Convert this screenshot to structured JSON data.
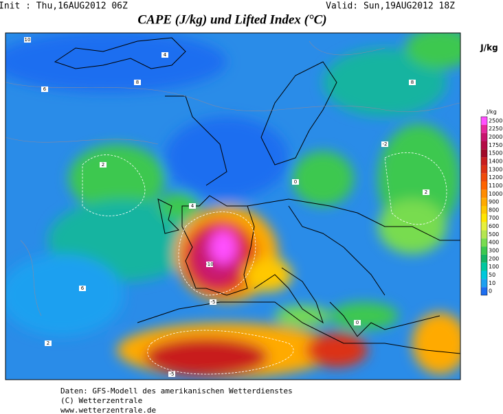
{
  "header": {
    "init": "Init : Thu,16AUG2012 06Z",
    "valid": "Valid: Sun,19AUG2012 18Z",
    "title": "CAPE (J/kg) und Lifted Index (°C)"
  },
  "colorbar": {
    "unit": "J/kg",
    "small_unit": "J/kg",
    "levels": [
      {
        "label": "2500",
        "color": "#ff50ff"
      },
      {
        "label": "2250",
        "color": "#e6289c"
      },
      {
        "label": "2000",
        "color": "#c8146e"
      },
      {
        "label": "1750",
        "color": "#b40c46"
      },
      {
        "label": "1500",
        "color": "#a00a28"
      },
      {
        "label": "1400",
        "color": "#c81e1e"
      },
      {
        "label": "1300",
        "color": "#dc3214"
      },
      {
        "label": "1200",
        "color": "#f04b0a"
      },
      {
        "label": "1100",
        "color": "#ff6400"
      },
      {
        "label": "1000",
        "color": "#ff8c00"
      },
      {
        "label": "900",
        "color": "#ffaa00"
      },
      {
        "label": "800",
        "color": "#ffc800"
      },
      {
        "label": "700",
        "color": "#ffe600"
      },
      {
        "label": "600",
        "color": "#e6f03c"
      },
      {
        "label": "500",
        "color": "#b4e650"
      },
      {
        "label": "400",
        "color": "#78dc50"
      },
      {
        "label": "300",
        "color": "#3cc850"
      },
      {
        "label": "200",
        "color": "#14b464"
      },
      {
        "label": "100",
        "color": "#00c8a0"
      },
      {
        "label": "50",
        "color": "#00c8dc"
      },
      {
        "label": "10",
        "color": "#1ea0f0"
      },
      {
        "label": "0",
        "color": "#1e6ef0"
      }
    ]
  },
  "map_labels": [
    "10",
    "8",
    "6",
    "4",
    "2",
    "0",
    "-2",
    "-5",
    "-10",
    "4",
    "6",
    "8",
    "2",
    "-5",
    "0",
    "2"
  ],
  "footer": {
    "line1": "Daten: GFS-Modell des amerikanischen Wetterdienstes",
    "line2": "(C) Wetterzentrale",
    "line3": "www.wetterzentrale.de"
  }
}
